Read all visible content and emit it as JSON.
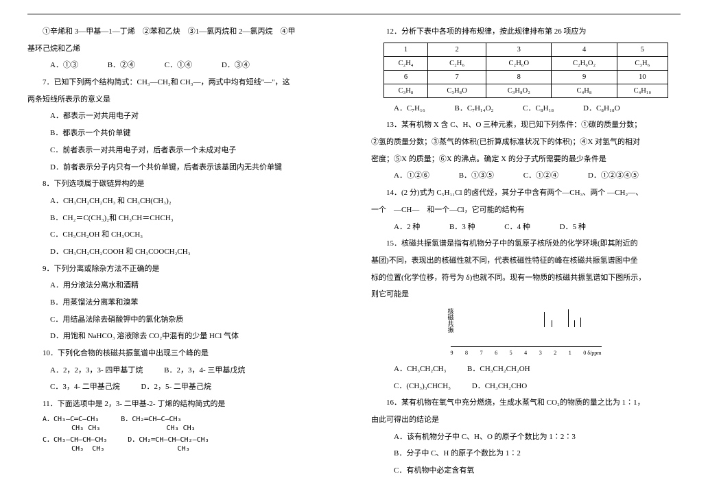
{
  "left": {
    "q6_pre": "①辛烯和 3—甲基—1—丁烯　②苯和乙炔　③1—氯丙烷和 2—氯丙烷　④甲",
    "q6_pre2": "基环己烷和乙烯",
    "q6_opts": [
      "A．①③",
      "B．②④",
      "C．①④",
      "D．③④"
    ],
    "q7": "7．已知下列两个结构简式：CH₃—CH₃和 CH₃—，两式中均有短线\"—\"，这",
    "q7b": "两条短线所表示的意义是",
    "q7_opts": [
      "A．都表示一对共用电子对",
      "B．都表示一个共价单键",
      "C．前者表示一对共用电子对，后者表示一个未成对电子",
      "D．前者表示分子内只有一个共价单键，后者表示该基团内无共价单键"
    ],
    "q8": "8．下列选项属于碳链异构的是",
    "q8_opts": [
      "A．CH₃CH₂CH₂CH₃ 和 CH₃CH(CH₃)₂",
      "B．CH₂＝C(CH₃)₂和 CH₃CH＝CHCH₃",
      "C．CH₃CH₂OH 和 CH₃OCH₃",
      "D．CH₃CH₂CH₂COOH 和 CH₃COOCH₂CH₃"
    ],
    "q9": "9．下列分离或除杂方法不正确的是",
    "q9_opts": [
      "A．用分液法分离水和酒精",
      "B．用蒸馏法分离苯和溴苯",
      "C．用结晶法除去硝酸钾中的氯化钠杂质",
      "D．用饱和 NaHCO₃ 溶液除去 CO₂中混有的少量 HCl 气体"
    ],
    "q10": "10．下列化合物的核磁共振氢谱中出现三个峰的是",
    "q10_opts1": [
      "A．2，2，3，3- 四甲基丁烷",
      "B．2，3，4- 三甲基戊烷"
    ],
    "q10_opts2": [
      "C．3，4- 二甲基己烷",
      "D．2，5- 二甲基己烷"
    ],
    "q11": "11．下面选项中是 2，3- 二甲基-2- 丁烯的结构简式的是",
    "q11_A_l1": "A．CH₃—C═C—CH₃",
    "q11_A_l2": "       CH₃ CH₃",
    "q11_B_l1": "B．CH₂═CH—C—CH₃",
    "q11_B_l2": "           CH₃ CH₃",
    "q11_C_l1": "C．CH₃—CH—CH—CH₃",
    "q11_C_l2": "       CH₃  CH₃",
    "q11_D_l1": "D．CH₂═CH—CH—CH₂—CH₃",
    "q11_D_l2": "            CH₃"
  },
  "right": {
    "q12": "12．分析下表中各项的排布规律，按此规律排布第 26 项应为",
    "table": {
      "r1": [
        "1",
        "2",
        "3",
        "4",
        "5"
      ],
      "r2": [
        "C₂H₄",
        "C₂H₆",
        "C₂H₆O",
        "C₂H₆O₂",
        "C₃H₆"
      ],
      "r3": [
        "6",
        "7",
        "8",
        "9",
        "10"
      ],
      "r4": [
        "C₃H₈",
        "C₃H₈O",
        "C₃H₈O₂",
        "C₄H₈",
        "C₄H₁₀"
      ]
    },
    "q12_opts": [
      "A．C₇H₁₆",
      "B．C₇H₁₄O₂",
      "C．C₈H₁₈",
      "D．C₈H₁₈O"
    ],
    "q13a": "13．某有机物 X 含 C、H、O 三种元素，现已知下列条件：①碳的质量分数；",
    "q13b": "②氢的质量分数；③蒸气的体积(已折算成标准状况下的体积)；④X 对氢气的相对",
    "q13c": "密度；⑤X 的质量；⑥X 的沸点。确定 X 的分子式所需要的最少条件是",
    "q13_opts": [
      "A．①②⑥",
      "B．①③⑤",
      "C．①②④",
      "D．①②③④⑤"
    ],
    "q14a": "14．(2 分)式为 C₅H₁₁Cl 的卤代烃，其分子中含有两个—CH₃、两个 —CH₂—、",
    "q14b": "一个　—CH—　和一个—Cl，它可能的结构有",
    "q14_opts": [
      "A．2 种",
      "B．3 种",
      "C．4 种",
      "D．5 种"
    ],
    "q15a": "15．核磁共振氢谱是指有机物分子中的氢原子核所处的化学环境(即其附近的",
    "q15b": "基团)不同，表现出的核磁性就不同，代表核磁性特征的峰在核磁共振氢谱图中坐",
    "q15c": "标的位置(化学位移，符号为 δ)也就不同。现有一物质的核磁共振氢谱如下图所示，",
    "q15d": "则它可能是",
    "nmr": {
      "ylabel": "核磁共振",
      "peaks": [
        {
          "x": 62,
          "h": 22
        },
        {
          "x": 67,
          "h": 10
        },
        {
          "x": 78,
          "h": 26
        },
        {
          "x": 82,
          "h": 10
        },
        {
          "x": 86,
          "h": 14
        }
      ],
      "ticks": [
        "9",
        "8",
        "7",
        "6",
        "5",
        "4",
        "3",
        "2",
        "1",
        "0 δ/ppm"
      ]
    },
    "q15_opts1": [
      "A．CH₃CH₂CH₃",
      "B．CH₃CH₂CH₂OH"
    ],
    "q15_opts2": [
      "C．(CH₃)₃CHCH₃",
      "D．CH₃CH₂CHO"
    ],
    "q16a": "16．某有机物在氧气中充分燃烧，生成水蒸气和 CO₂的物质的量之比为 1∶1，",
    "q16b": "由此可得出的结论是",
    "q16_opts": [
      "A．该有机物分子中 C、H、O 的原子个数比为 1∶2∶3",
      "B．分子中 C、H 的原子个数比为 1∶2",
      "C．有机物中必定含有氧"
    ]
  }
}
